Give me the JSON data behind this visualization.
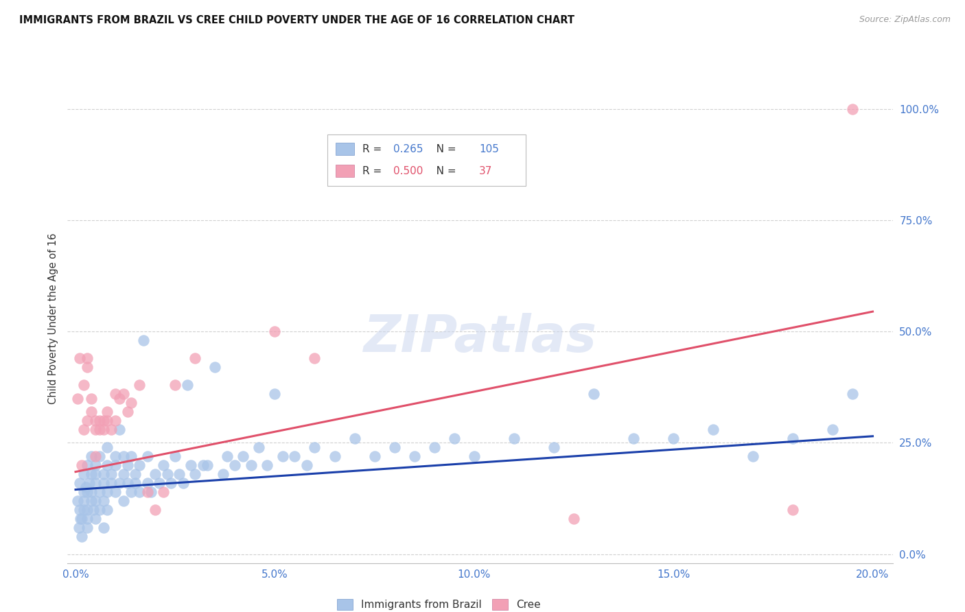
{
  "title": "IMMIGRANTS FROM BRAZIL VS CREE CHILD POVERTY UNDER THE AGE OF 16 CORRELATION CHART",
  "source": "Source: ZipAtlas.com",
  "ylabel": "Child Poverty Under the Age of 16",
  "yticks": [
    "0.0%",
    "25.0%",
    "50.0%",
    "75.0%",
    "100.0%"
  ],
  "ytick_vals": [
    0.0,
    0.25,
    0.5,
    0.75,
    1.0
  ],
  "xtick_vals": [
    0.0,
    0.05,
    0.1,
    0.15,
    0.2
  ],
  "xtick_labels": [
    "0.0%",
    "5.0%",
    "10.0%",
    "15.0%",
    "20.0%"
  ],
  "xlim": [
    -0.002,
    0.205
  ],
  "ylim": [
    -0.02,
    1.08
  ],
  "blue_R": "0.265",
  "blue_N": "105",
  "pink_R": "0.500",
  "pink_N": "37",
  "blue_color": "#a8c4e8",
  "pink_color": "#f2a0b5",
  "blue_line_color": "#1a3faa",
  "pink_line_color": "#e0506a",
  "title_color": "#111111",
  "axis_label_color": "#4477cc",
  "grid_color": "#d0d0d0",
  "legend_label_blue": "Immigrants from Brazil",
  "legend_label_pink": "Cree",
  "blue_line_x0": 0.0,
  "blue_line_y0": 0.145,
  "blue_line_x1": 0.2,
  "blue_line_y1": 0.265,
  "pink_line_x0": 0.0,
  "pink_line_y0": 0.185,
  "pink_line_x1": 0.2,
  "pink_line_y1": 0.545,
  "blue_scatter_x": [
    0.0005,
    0.001,
    0.001,
    0.0015,
    0.002,
    0.002,
    0.002,
    0.0025,
    0.003,
    0.003,
    0.003,
    0.003,
    0.0035,
    0.004,
    0.004,
    0.004,
    0.004,
    0.0045,
    0.005,
    0.005,
    0.005,
    0.005,
    0.006,
    0.006,
    0.006,
    0.007,
    0.007,
    0.007,
    0.008,
    0.008,
    0.008,
    0.008,
    0.009,
    0.009,
    0.01,
    0.01,
    0.01,
    0.011,
    0.011,
    0.012,
    0.012,
    0.012,
    0.013,
    0.013,
    0.014,
    0.014,
    0.015,
    0.015,
    0.016,
    0.016,
    0.017,
    0.018,
    0.018,
    0.019,
    0.02,
    0.021,
    0.022,
    0.023,
    0.024,
    0.025,
    0.026,
    0.027,
    0.028,
    0.029,
    0.03,
    0.032,
    0.033,
    0.035,
    0.037,
    0.038,
    0.04,
    0.042,
    0.044,
    0.046,
    0.048,
    0.05,
    0.052,
    0.055,
    0.058,
    0.06,
    0.065,
    0.07,
    0.075,
    0.08,
    0.085,
    0.09,
    0.095,
    0.1,
    0.11,
    0.12,
    0.13,
    0.14,
    0.15,
    0.16,
    0.17,
    0.18,
    0.19,
    0.195,
    0.0008,
    0.0012,
    0.0015,
    0.002,
    0.003,
    0.005,
    0.007
  ],
  "blue_scatter_y": [
    0.12,
    0.1,
    0.16,
    0.08,
    0.14,
    0.18,
    0.12,
    0.15,
    0.1,
    0.14,
    0.2,
    0.08,
    0.16,
    0.12,
    0.18,
    0.14,
    0.22,
    0.1,
    0.16,
    0.12,
    0.2,
    0.18,
    0.14,
    0.22,
    0.1,
    0.18,
    0.16,
    0.12,
    0.2,
    0.14,
    0.24,
    0.1,
    0.18,
    0.16,
    0.14,
    0.2,
    0.22,
    0.16,
    0.28,
    0.18,
    0.12,
    0.22,
    0.2,
    0.16,
    0.14,
    0.22,
    0.18,
    0.16,
    0.2,
    0.14,
    0.48,
    0.16,
    0.22,
    0.14,
    0.18,
    0.16,
    0.2,
    0.18,
    0.16,
    0.22,
    0.18,
    0.16,
    0.38,
    0.2,
    0.18,
    0.2,
    0.2,
    0.42,
    0.18,
    0.22,
    0.2,
    0.22,
    0.2,
    0.24,
    0.2,
    0.36,
    0.22,
    0.22,
    0.2,
    0.24,
    0.22,
    0.26,
    0.22,
    0.24,
    0.22,
    0.24,
    0.26,
    0.22,
    0.26,
    0.24,
    0.36,
    0.26,
    0.26,
    0.28,
    0.22,
    0.26,
    0.28,
    0.36,
    0.06,
    0.08,
    0.04,
    0.1,
    0.06,
    0.08,
    0.06
  ],
  "pink_scatter_x": [
    0.0005,
    0.001,
    0.0015,
    0.002,
    0.002,
    0.003,
    0.003,
    0.003,
    0.004,
    0.004,
    0.005,
    0.005,
    0.005,
    0.006,
    0.006,
    0.007,
    0.007,
    0.008,
    0.008,
    0.009,
    0.01,
    0.01,
    0.011,
    0.012,
    0.013,
    0.014,
    0.016,
    0.018,
    0.02,
    0.022,
    0.025,
    0.03,
    0.05,
    0.06,
    0.125,
    0.18,
    0.195
  ],
  "pink_scatter_y": [
    0.35,
    0.44,
    0.2,
    0.28,
    0.38,
    0.44,
    0.42,
    0.3,
    0.35,
    0.32,
    0.3,
    0.22,
    0.28,
    0.3,
    0.28,
    0.3,
    0.28,
    0.3,
    0.32,
    0.28,
    0.3,
    0.36,
    0.35,
    0.36,
    0.32,
    0.34,
    0.38,
    0.14,
    0.1,
    0.14,
    0.38,
    0.44,
    0.5,
    0.44,
    0.08,
    0.1,
    1.0
  ]
}
